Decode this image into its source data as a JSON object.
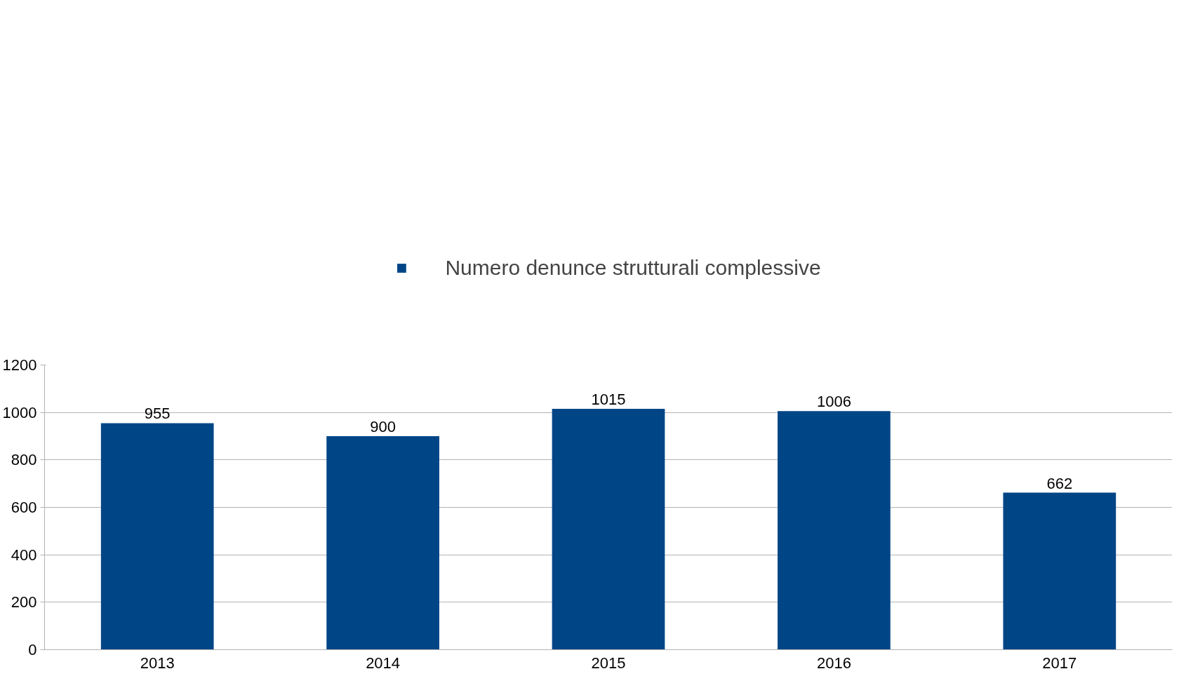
{
  "chart_data": {
    "type": "bar",
    "categories": [
      "2013",
      "2014",
      "2015",
      "2016",
      "2017"
    ],
    "series": [
      {
        "name": "Numero denunce strutturali complessive",
        "color": "#004586",
        "values": [
          955,
          900,
          1015,
          1006,
          662
        ]
      }
    ],
    "ylim": [
      0,
      1200
    ],
    "yticks": [
      0,
      200,
      400,
      600,
      800,
      1000,
      1200
    ],
    "grid": "y",
    "legend": "top",
    "data_labels": true
  }
}
